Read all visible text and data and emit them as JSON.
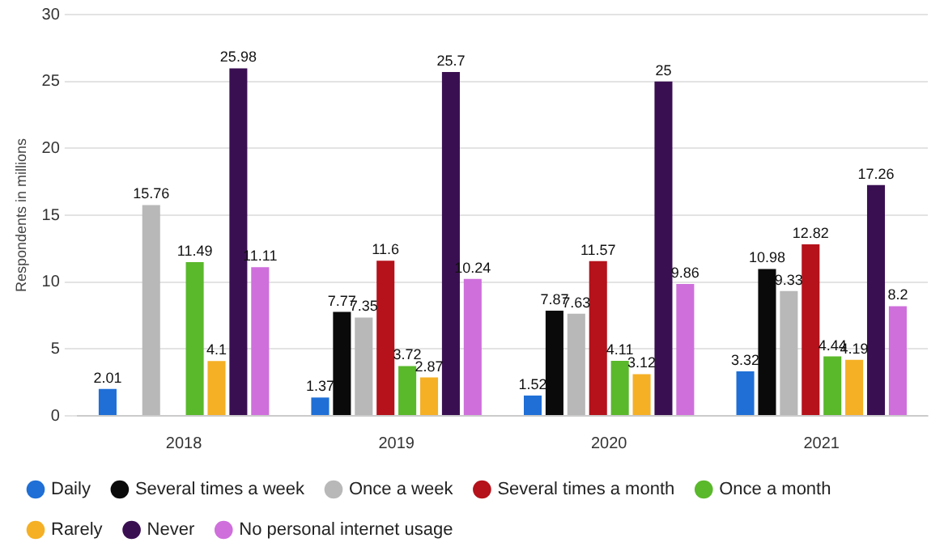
{
  "chart_data": {
    "type": "bar",
    "ylabel": "Respondents in millions",
    "categories": [
      "2018",
      "2019",
      "2020",
      "2021"
    ],
    "series": [
      {
        "name": "Daily",
        "color": "#1f6fd6",
        "values": [
          2.01,
          1.37,
          1.52,
          3.32
        ]
      },
      {
        "name": "Several times a week",
        "color": "#0a0a0a",
        "values": [
          null,
          7.77,
          7.87,
          10.98
        ]
      },
      {
        "name": "Once a week",
        "color": "#b8b8b8",
        "values": [
          15.76,
          7.35,
          7.63,
          9.33
        ]
      },
      {
        "name": "Several times a month",
        "color": "#b5121b",
        "values": [
          null,
          11.6,
          11.57,
          12.82
        ]
      },
      {
        "name": "Once a month",
        "color": "#5ab82b",
        "values": [
          11.49,
          3.72,
          4.11,
          4.44
        ]
      },
      {
        "name": "Rarely",
        "color": "#f5b025",
        "values": [
          4.1,
          2.87,
          3.12,
          4.19
        ]
      },
      {
        "name": "Never",
        "color": "#3a0f52",
        "values": [
          25.98,
          25.7,
          25,
          17.26
        ]
      },
      {
        "name": "No personal internet usage",
        "color": "#cf6fdc",
        "values": [
          11.11,
          10.24,
          9.86,
          8.2
        ]
      }
    ],
    "ylim": [
      0,
      30
    ],
    "yticks": [
      0,
      5,
      10,
      15,
      20,
      25,
      30
    ],
    "grid": "y",
    "legend": "bottom",
    "data_labels": true
  }
}
